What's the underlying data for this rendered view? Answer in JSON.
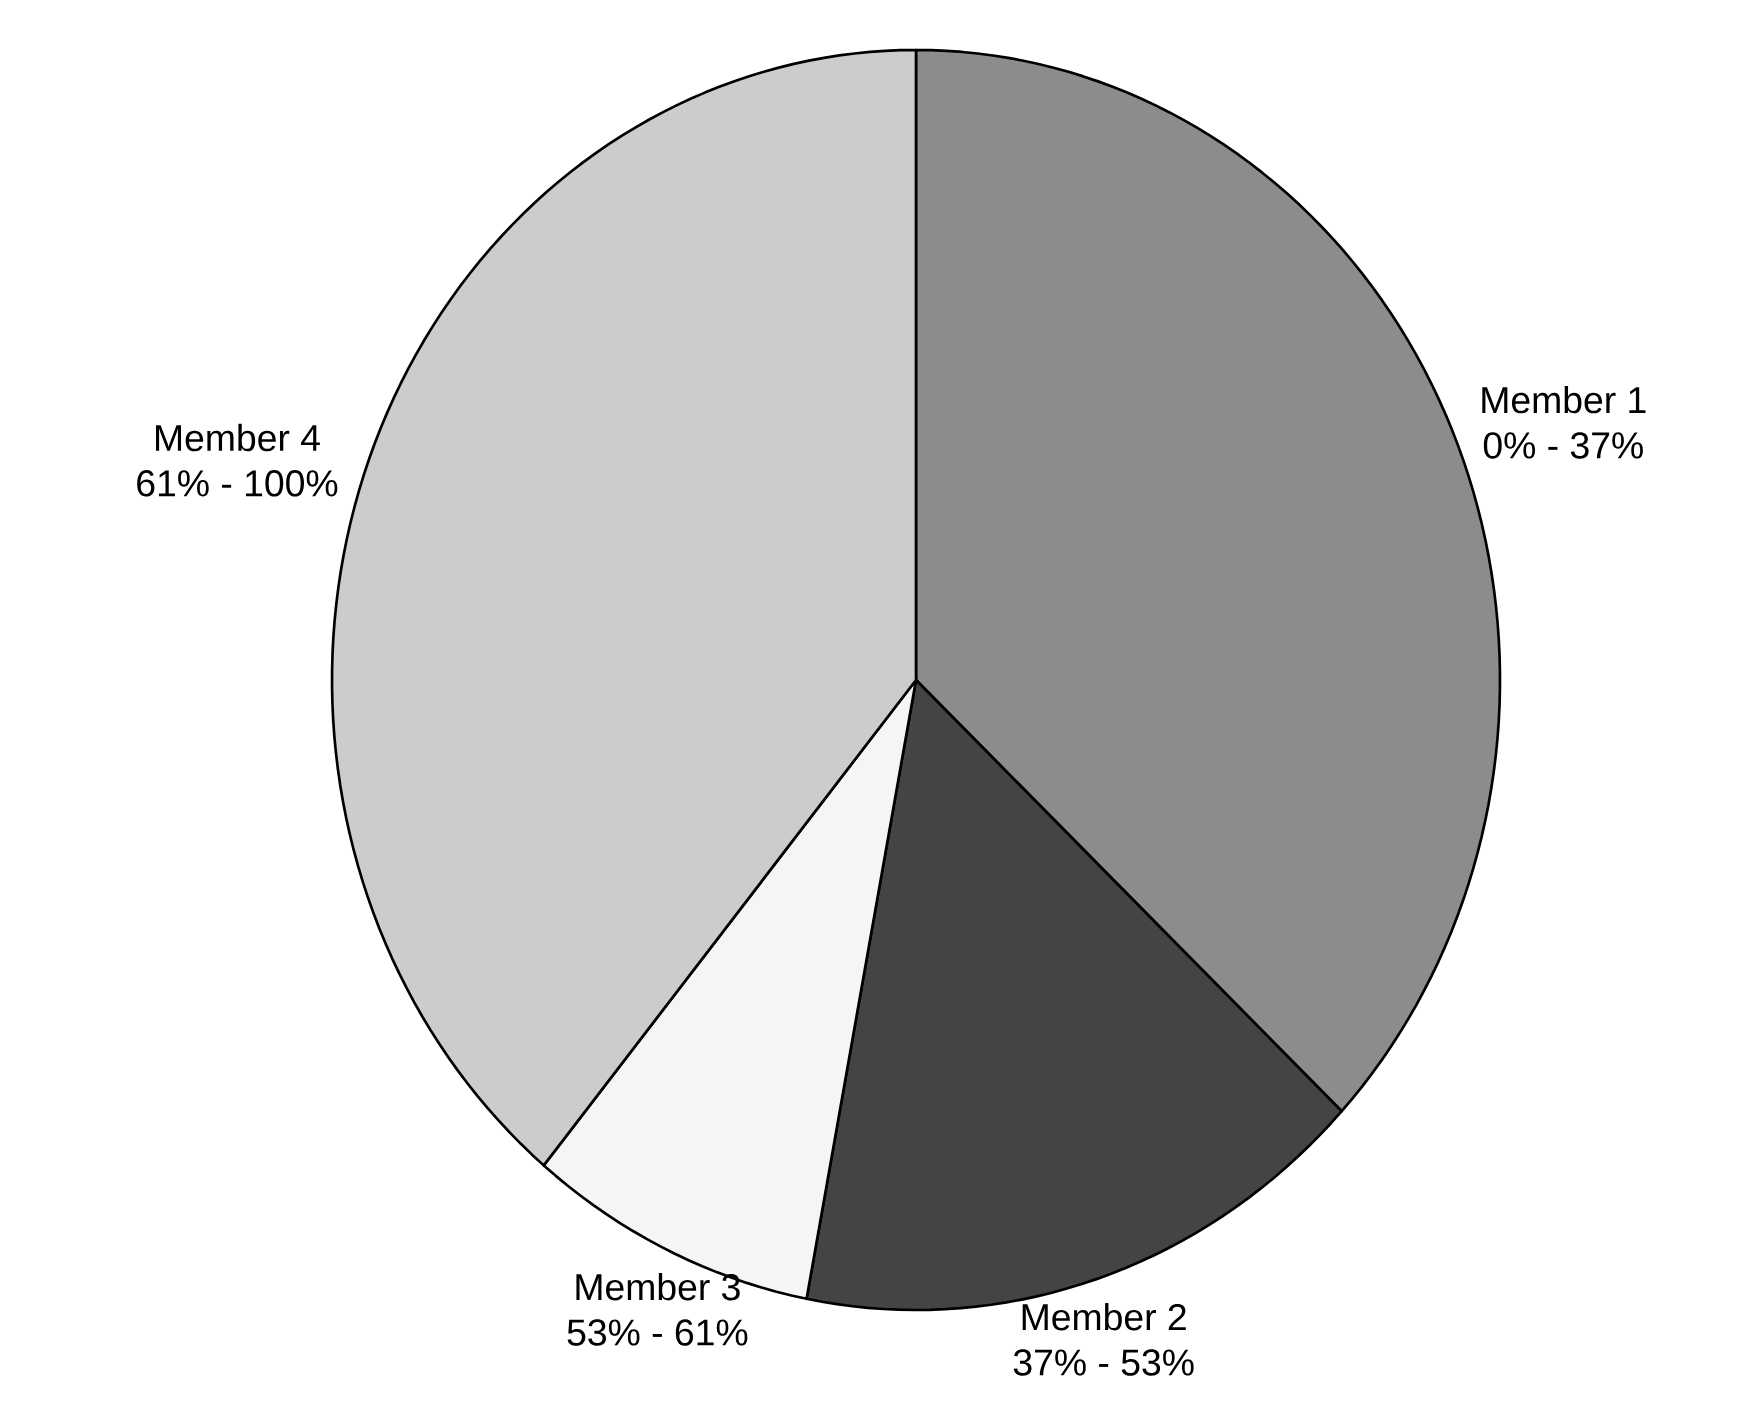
{
  "chart_data": {
    "type": "pie",
    "categories": [
      "Member 1",
      "Member 2",
      "Member 3",
      "Member 4"
    ],
    "values": [
      37,
      16,
      8,
      39
    ],
    "colors": [
      "#8c8c8c",
      "#444444",
      "#f5f5f5",
      "#cccccc"
    ],
    "annotations": [
      "0% - 37%",
      "37% - 53%",
      "53% - 61%",
      "61% - 100%"
    ]
  }
}
